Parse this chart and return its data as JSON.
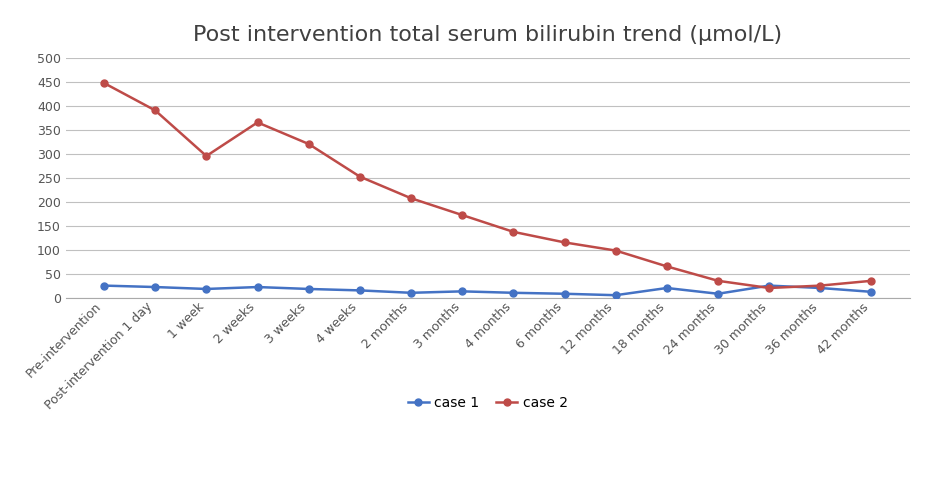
{
  "title": "Post intervention total serum bilirubin trend (μmol/L)",
  "categories": [
    "Pre-intervention",
    "Post-intervention 1 day",
    "1 week",
    "2 weeks",
    "3 weeks",
    "4 weeks",
    "2 months",
    "3 months",
    "4 months",
    "6 months",
    "12 months",
    "18 months",
    "24 months",
    "30 months",
    "36 months",
    "42 months"
  ],
  "case1": [
    25,
    22,
    18,
    22,
    18,
    15,
    10,
    13,
    10,
    8,
    5,
    20,
    8,
    25,
    20,
    12
  ],
  "case2": [
    447,
    390,
    295,
    365,
    320,
    252,
    207,
    172,
    137,
    115,
    98,
    65,
    35,
    20,
    25,
    35
  ],
  "case1_color": "#4472C4",
  "case2_color": "#BE4B48",
  "ylim": [
    0,
    500
  ],
  "yticks": [
    0,
    50,
    100,
    150,
    200,
    250,
    300,
    350,
    400,
    450,
    500
  ],
  "background_color": "#FFFFFF",
  "plot_bg_color": "#FFFFFF",
  "grid_color": "#C0C0C0",
  "title_fontsize": 16,
  "tick_fontsize": 9,
  "legend_labels": [
    "case 1",
    "case 2"
  ],
  "legend_fontsize": 10
}
